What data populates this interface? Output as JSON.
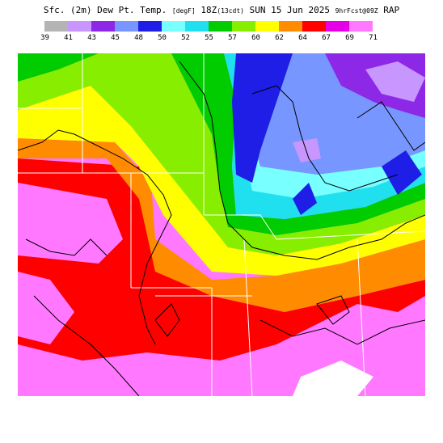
{
  "header": {
    "product": "Sfc. (2m) Dew Pt. Temp.",
    "units": "[degF]",
    "valid": "18Z",
    "local": "(13cdt)",
    "date": "SUN 15 Jun 2025",
    "forecast": "9hrFcst@09Z",
    "model": "RAP"
  },
  "legend": {
    "levels": [
      "39",
      "41",
      "43",
      "45",
      "48",
      "50",
      "52",
      "55",
      "57",
      "60",
      "62",
      "64",
      "67",
      "69",
      "71"
    ],
    "colors": [
      "#b4b4b4",
      "#c896ff",
      "#8c28e6",
      "#7896ff",
      "#1e1ee6",
      "#78ffff",
      "#20e0f0",
      "#00cc00",
      "#88ee00",
      "#ffff00",
      "#ff8c00",
      "#ff0000",
      "#e600e6",
      "#ff78ff"
    ]
  },
  "map": {
    "region": "Central United States",
    "background": "#ff78ff",
    "outline_color": "#000000",
    "border_color": "#ffffff"
  }
}
